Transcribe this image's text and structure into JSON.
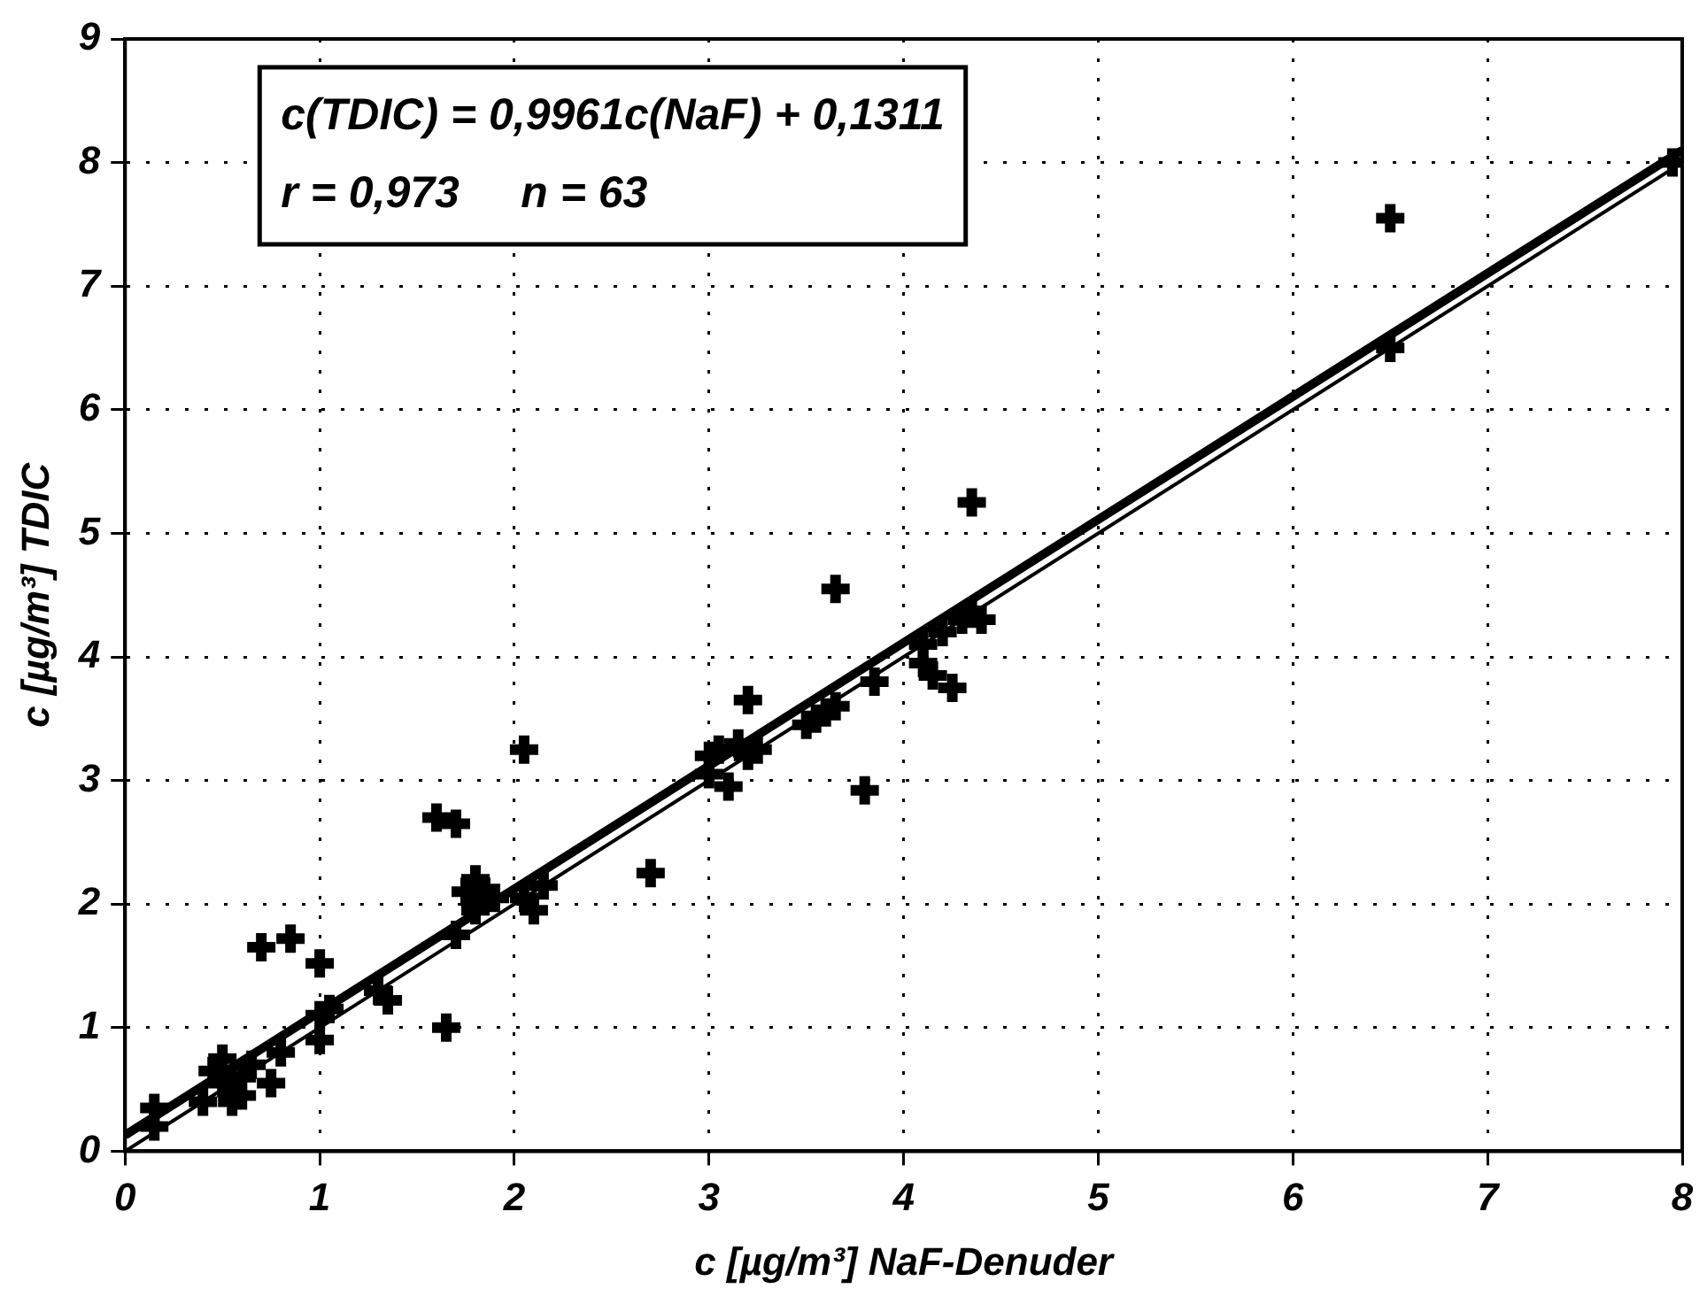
{
  "chart_data": {
    "type": "scatter",
    "xlabel": "c [µg/m³] NaF-Denuder",
    "ylabel": "c [µg/m³] TDIC",
    "annotations": [
      "c(TDIC) = 0,9961c(NaF) + 0,1311",
      "r = 0,973     n = 63"
    ],
    "xlim": [
      0,
      8
    ],
    "xticks": [
      0,
      1,
      2,
      3,
      4,
      5,
      6,
      7,
      8
    ],
    "ylim": [
      0,
      9
    ],
    "yticks": [
      0,
      1,
      2,
      3,
      4,
      5,
      6,
      7,
      8,
      9
    ],
    "grid": true,
    "legend": false,
    "series": [
      {
        "marker": "cross",
        "color": "#000000",
        "x": [
          0.15,
          0.15,
          0.4,
          0.45,
          0.5,
          0.5,
          0.55,
          0.55,
          0.6,
          0.6,
          0.65,
          0.75,
          0.8,
          0.7,
          0.85,
          1.0,
          1.0,
          1.0,
          1.05,
          1.3,
          1.35,
          1.65,
          1.6,
          1.7,
          1.7,
          1.75,
          1.8,
          1.8,
          1.85,
          1.9,
          2.05,
          2.05,
          2.1,
          2.15,
          2.7,
          3.0,
          3.0,
          3.05,
          3.1,
          3.15,
          3.2,
          3.2,
          3.25,
          3.5,
          3.55,
          3.6,
          3.65,
          3.65,
          3.8,
          3.85,
          4.1,
          4.1,
          4.15,
          4.2,
          4.25,
          4.3,
          4.35,
          4.35,
          4.4,
          6.5,
          6.5,
          7.95,
          0.5
        ],
        "values": [
          0.35,
          0.2,
          0.4,
          0.65,
          0.75,
          0.55,
          0.5,
          0.4,
          0.6,
          0.45,
          0.7,
          0.55,
          0.8,
          1.65,
          1.72,
          1.52,
          1.1,
          0.9,
          1.15,
          1.3,
          1.22,
          1.0,
          2.7,
          2.65,
          1.75,
          2.1,
          2.2,
          1.95,
          2.1,
          2.05,
          3.25,
          2.05,
          1.95,
          2.15,
          2.25,
          3.2,
          3.05,
          3.25,
          2.95,
          3.3,
          3.65,
          3.2,
          3.25,
          3.45,
          3.5,
          3.55,
          4.55,
          3.6,
          2.92,
          3.8,
          4.1,
          3.95,
          3.85,
          4.2,
          3.75,
          4.3,
          5.25,
          4.35,
          4.3,
          6.5,
          7.55,
          8.0,
          0.65
        ]
      },
      {
        "type": "line",
        "marker": "none",
        "color": "#000000",
        "x": [
          0,
          8
        ],
        "values": [
          0.13,
          8.1
        ]
      },
      {
        "type": "line",
        "marker": "none",
        "color": "#000000",
        "x": [
          0,
          8
        ],
        "values": [
          0,
          8
        ]
      }
    ]
  }
}
